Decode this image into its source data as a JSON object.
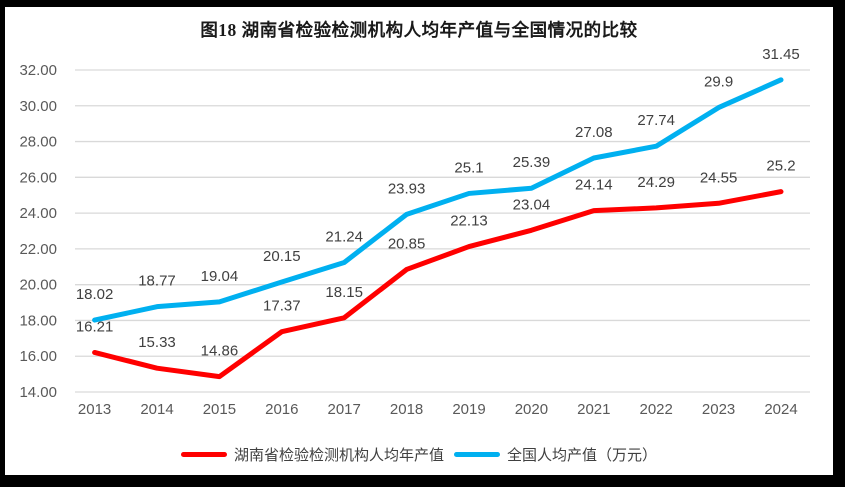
{
  "chart_data": {
    "type": "line",
    "title": "图18 湖南省检验检测机构人均年产值与全国情况的比较",
    "categories": [
      "2013",
      "2014",
      "2015",
      "2016",
      "2017",
      "2018",
      "2019",
      "2020",
      "2021",
      "2022",
      "2023",
      "2024"
    ],
    "series": [
      {
        "name": "湖南省检验检测机构人均年产值",
        "color": "#FF0000",
        "values": [
          16.21,
          15.33,
          14.86,
          17.37,
          18.15,
          20.85,
          22.13,
          23.04,
          24.14,
          24.29,
          24.55,
          25.2
        ],
        "labels": [
          "16.21",
          "15.33",
          "14.86",
          "17.37",
          "18.15",
          "20.85",
          "22.13",
          "23.04",
          "24.14",
          "24.29",
          "24.55",
          "25.2"
        ]
      },
      {
        "name": "全国人均产值（万元）",
        "color": "#00B0F0",
        "values": [
          18.02,
          18.77,
          19.04,
          20.15,
          21.24,
          23.93,
          25.1,
          25.39,
          27.08,
          27.74,
          29.9,
          31.45
        ],
        "labels": [
          "18.02",
          "18.77",
          "19.04",
          "20.15",
          "21.24",
          "23.93",
          "25.1",
          "25.39",
          "27.08",
          "27.74",
          "29.9",
          "31.45"
        ]
      }
    ],
    "ylim": [
      14,
      32
    ],
    "ytick_step": 2,
    "ytick_labels": [
      "14.00",
      "16.00",
      "18.00",
      "20.00",
      "22.00",
      "24.00",
      "26.00",
      "28.00",
      "30.00",
      "32.00"
    ],
    "xlabel": "",
    "ylabel": "",
    "grid": true,
    "gridline_color": "#D9D9D9",
    "legend_position": "bottom"
  }
}
